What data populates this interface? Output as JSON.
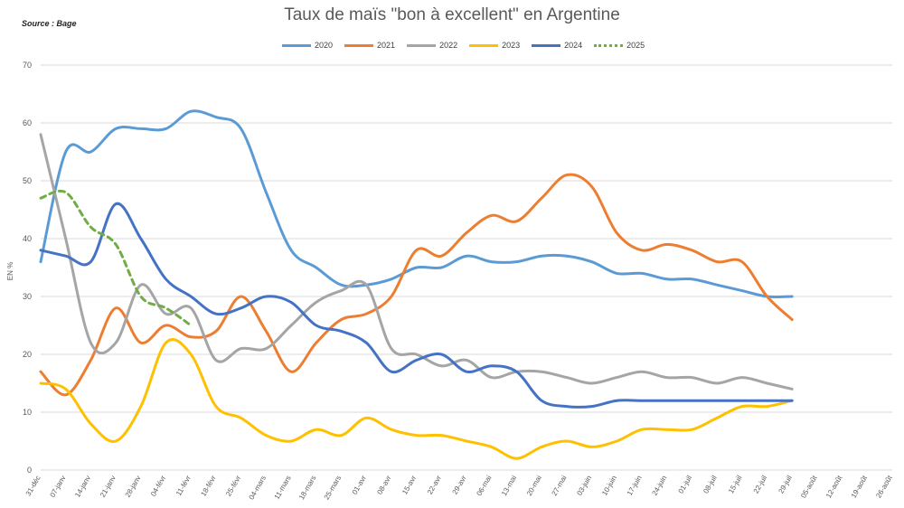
{
  "title": "Taux de maïs \"bon à excellent\" en Argentine",
  "source": "Source : Bage",
  "chart_data": {
    "type": "line",
    "title": "Taux de maïs \"bon à excellent\" en Argentine",
    "ylabel": "EN %",
    "xlabel": "",
    "ylim": [
      0,
      70
    ],
    "yticks": [
      0,
      10,
      20,
      30,
      40,
      50,
      60,
      70
    ],
    "grid": true,
    "legend_position": "top",
    "categories": [
      "31-déc",
      "07-janv",
      "14-janv",
      "21-janv",
      "28-janv",
      "04-févr",
      "11-févr",
      "18-févr",
      "25-févr",
      "04-mars",
      "11-mars",
      "18-mars",
      "25-mars",
      "01-avr",
      "08-avr",
      "15-avr",
      "22-avr",
      "29-avr",
      "06-mai",
      "13-mai",
      "20-mai",
      "27-mai",
      "03-juin",
      "10-juin",
      "17-juin",
      "24-juin",
      "01-juil",
      "08-juil",
      "15-juil",
      "22-juil",
      "29-juil",
      "05-août",
      "12-août",
      "19-août",
      "26-août"
    ],
    "series": [
      {
        "name": "2020",
        "color": "#5B9BD5",
        "dashed": false,
        "values": [
          36,
          55,
          55,
          59,
          59,
          59,
          62,
          61,
          59,
          48,
          38,
          35,
          32,
          32,
          33,
          35,
          35,
          37,
          36,
          36,
          37,
          37,
          36,
          34,
          34,
          33,
          33,
          32,
          31,
          30,
          30,
          null,
          null,
          null,
          null
        ]
      },
      {
        "name": "2021",
        "color": "#ED7D31",
        "dashed": false,
        "values": [
          17,
          13,
          19,
          28,
          22,
          25,
          23,
          24,
          30,
          24,
          17,
          22,
          26,
          27,
          30,
          38,
          37,
          41,
          44,
          43,
          47,
          51,
          49,
          41,
          38,
          39,
          38,
          36,
          36,
          30,
          26,
          null,
          null,
          null,
          null
        ]
      },
      {
        "name": "2022",
        "color": "#A5A5A5",
        "dashed": false,
        "values": [
          58,
          40,
          22,
          22,
          32,
          27,
          28,
          19,
          21,
          21,
          25,
          29,
          31,
          32,
          21,
          20,
          18,
          19,
          16,
          17,
          17,
          16,
          15,
          16,
          17,
          16,
          16,
          15,
          16,
          15,
          14,
          null,
          null,
          null,
          null
        ]
      },
      {
        "name": "2023",
        "color": "#FFC000",
        "dashed": false,
        "values": [
          15,
          14,
          8,
          5,
          11,
          22,
          20,
          11,
          9,
          6,
          5,
          7,
          6,
          9,
          7,
          6,
          6,
          5,
          4,
          2,
          4,
          5,
          4,
          5,
          7,
          7,
          7,
          9,
          11,
          11,
          12,
          null,
          null,
          null,
          null
        ]
      },
      {
        "name": "2024",
        "color": "#4472C4",
        "dashed": false,
        "values": [
          38,
          37,
          36,
          46,
          40,
          33,
          30,
          27,
          28,
          30,
          29,
          25,
          24,
          22,
          17,
          19,
          20,
          17,
          18,
          17,
          12,
          11,
          11,
          12,
          12,
          12,
          12,
          12,
          12,
          12,
          12,
          null,
          null,
          null,
          null
        ]
      },
      {
        "name": "2025",
        "color": "#70AD47",
        "dashed": true,
        "values": [
          47,
          48,
          42,
          39,
          30,
          28,
          25,
          null,
          null,
          null,
          null,
          null,
          null,
          null,
          null,
          null,
          null,
          null,
          null,
          null,
          null,
          null,
          null,
          null,
          null,
          null,
          null,
          null,
          null,
          null,
          null,
          null,
          null,
          null,
          null
        ]
      }
    ]
  }
}
